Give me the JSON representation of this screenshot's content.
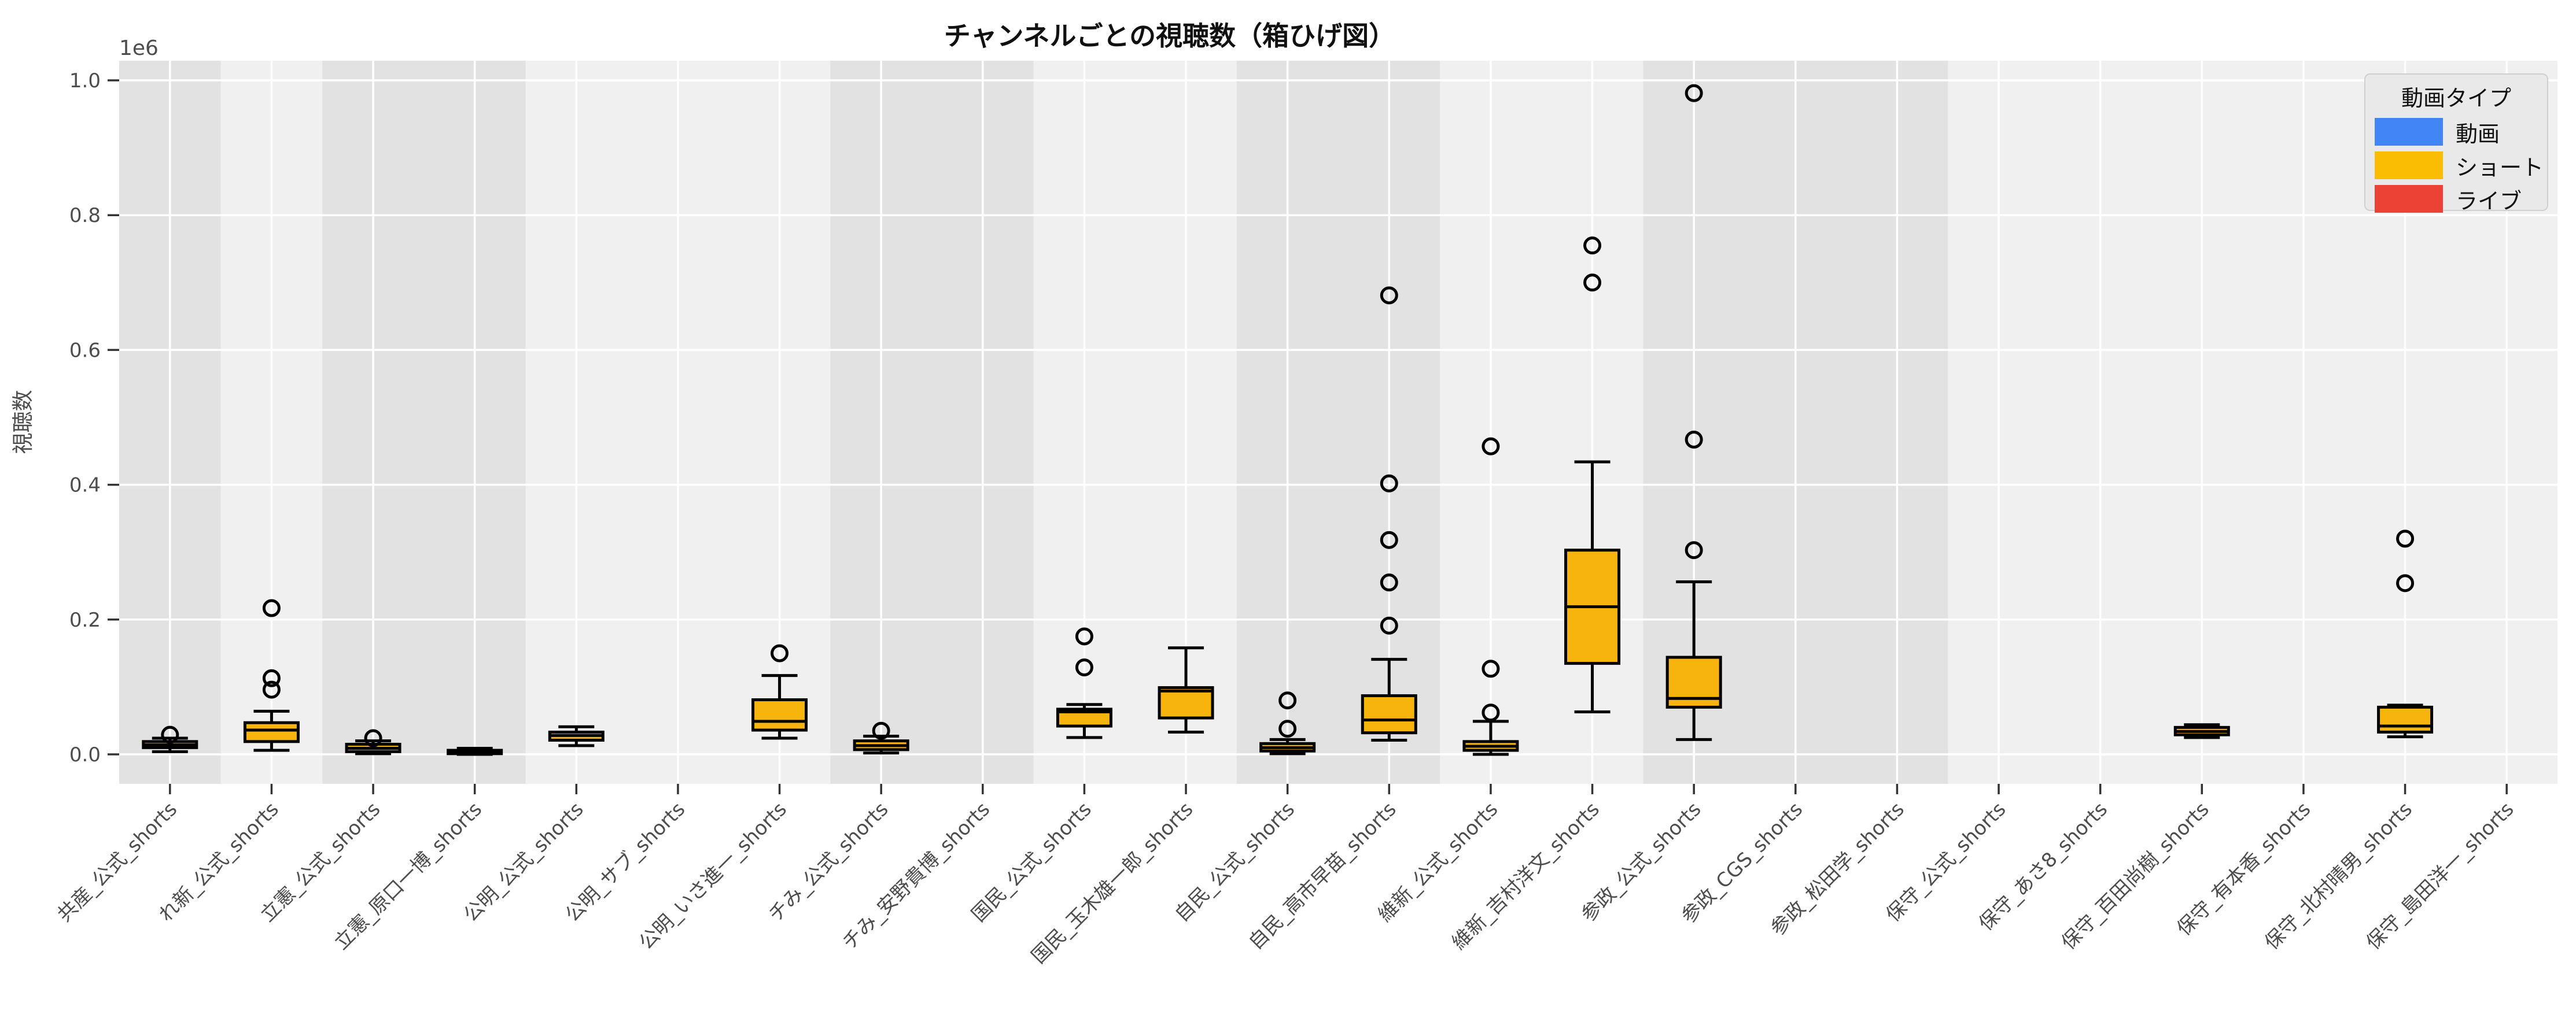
{
  "title": "チャンネルごとの視聴数（箱ひげ図）",
  "colors": {
    "figure_background": "#ffffff",
    "panel_background": "#f0f0f0",
    "panel_band_dark": "#e2e2e2",
    "gridline": "#ffffff",
    "box_fill": "#F6B40D",
    "box_stroke": "#000000",
    "tick_text": "#4d4d4d",
    "title_text": "#111111"
  },
  "chart_data": {
    "type": "boxplot",
    "title": "チャンネルごとの視聴数（箱ひげ図）",
    "xlabel": "",
    "ylabel": "視聴数",
    "offset_label": "1e6",
    "unit": "views, axis values are in units of 1e6",
    "ylim": [
      -0.044,
      1.03
    ],
    "yticks": [
      0.0,
      0.2,
      0.4,
      0.6,
      0.8,
      1.0
    ],
    "ytick_labels": [
      "0.0",
      "0.2",
      "0.4",
      "0.6",
      "0.8",
      "1.0"
    ],
    "grid": true,
    "legend": {
      "title": "動画タイプ",
      "position": "top-right",
      "entries": [
        {
          "label": "動画",
          "color": "#4285F4"
        },
        {
          "label": "ショート",
          "color": "#FBBC04"
        },
        {
          "label": "ライブ",
          "color": "#EA4335"
        }
      ]
    },
    "series_shown": "ショート",
    "categories": [
      "共産_公式_shorts",
      "れ新_公式_shorts",
      "立憲_公式_shorts",
      "立憲_原口一博_shorts",
      "公明_公式_shorts",
      "公明_サブ_shorts",
      "公明_いさ進一_shorts",
      "チみ_公式_shorts",
      "チみ_安野貴博_shorts",
      "国民_公式_shorts",
      "国民_玉木雄一郎_shorts",
      "自民_公式_shorts",
      "自民_高市早苗_shorts",
      "維新_公式_shorts",
      "維新_吉村洋文_shorts",
      "参政_公式_shorts",
      "参政_CGS_shorts",
      "参政_松田学_shorts",
      "保守_公式_shorts",
      "保守_あさ8_shorts",
      "保守_百田尚樹_shorts",
      "保守_有本香_shorts",
      "保守_北村晴男_shorts",
      "保守_島田洋一_shorts"
    ],
    "shaded_band_groups": [
      {
        "party": "共産",
        "start": 0,
        "end": 1
      },
      {
        "party": "立憲",
        "start": 2,
        "end": 4
      },
      {
        "party": "チみ",
        "start": 7,
        "end": 9
      },
      {
        "party": "自民",
        "start": 11,
        "end": 13
      },
      {
        "party": "参政",
        "start": 15,
        "end": 18
      }
    ],
    "boxes": [
      {
        "category": "共産_公式_shorts",
        "low": 0.004,
        "q1": 0.01,
        "median": 0.014,
        "q3": 0.019,
        "high": 0.024,
        "outliers": [
          0.029
        ]
      },
      {
        "category": "れ新_公式_shorts",
        "low": 0.006,
        "q1": 0.019,
        "median": 0.036,
        "q3": 0.047,
        "high": 0.064,
        "outliers": [
          0.096,
          0.113,
          0.217
        ]
      },
      {
        "category": "立憲_公式_shorts",
        "low": 0.001,
        "q1": 0.004,
        "median": 0.009,
        "q3": 0.015,
        "high": 0.02,
        "outliers": [
          0.024
        ]
      },
      {
        "category": "立憲_原口一博_shorts",
        "low": 0.0,
        "q1": 0.001,
        "median": 0.003,
        "q3": 0.006,
        "high": 0.009,
        "outliers": []
      },
      {
        "category": "公明_公式_shorts",
        "low": 0.013,
        "q1": 0.021,
        "median": 0.028,
        "q3": 0.033,
        "high": 0.041,
        "outliers": []
      },
      null,
      {
        "category": "公明_いさ進一_shorts",
        "low": 0.024,
        "q1": 0.036,
        "median": 0.049,
        "q3": 0.081,
        "high": 0.117,
        "outliers": [
          0.15
        ]
      },
      {
        "category": "チみ_公式_shorts",
        "low": 0.002,
        "q1": 0.007,
        "median": 0.013,
        "q3": 0.02,
        "high": 0.027,
        "outliers": [
          0.035
        ]
      },
      null,
      {
        "category": "国民_公式_shorts",
        "low": 0.025,
        "q1": 0.042,
        "median": 0.063,
        "q3": 0.067,
        "high": 0.074,
        "outliers": [
          0.129,
          0.175
        ]
      },
      {
        "category": "国民_玉木雄一郎_shorts",
        "low": 0.033,
        "q1": 0.054,
        "median": 0.094,
        "q3": 0.099,
        "high": 0.158,
        "outliers": []
      },
      {
        "category": "自民_公式_shorts",
        "low": 0.001,
        "q1": 0.005,
        "median": 0.01,
        "q3": 0.016,
        "high": 0.022,
        "outliers": [
          0.038,
          0.08
        ]
      },
      {
        "category": "自民_高市早苗_shorts",
        "low": 0.021,
        "q1": 0.032,
        "median": 0.051,
        "q3": 0.087,
        "high": 0.141,
        "outliers": [
          0.191,
          0.255,
          0.318,
          0.402,
          0.681
        ]
      },
      {
        "category": "維新_公式_shorts",
        "low": 0.0,
        "q1": 0.006,
        "median": 0.012,
        "q3": 0.019,
        "high": 0.049,
        "outliers": [
          0.062,
          0.127,
          0.457
        ]
      },
      {
        "category": "維新_吉村洋文_shorts",
        "low": 0.063,
        "q1": 0.135,
        "median": 0.219,
        "q3": 0.303,
        "high": 0.434,
        "outliers": [
          0.7,
          0.755
        ]
      },
      {
        "category": "参政_公式_shorts",
        "low": 0.022,
        "q1": 0.07,
        "median": 0.083,
        "q3": 0.144,
        "high": 0.256,
        "outliers": [
          0.303,
          0.467,
          0.981
        ]
      },
      null,
      null,
      null,
      null,
      {
        "category": "保守_百田尚樹_shorts",
        "low": 0.025,
        "q1": 0.029,
        "median": 0.034,
        "q3": 0.04,
        "high": 0.044,
        "outliers": []
      },
      null,
      {
        "category": "保守_北村晴男_shorts",
        "low": 0.026,
        "q1": 0.033,
        "median": 0.042,
        "q3": 0.07,
        "high": 0.073,
        "outliers": [
          0.254,
          0.32
        ]
      },
      null
    ]
  }
}
